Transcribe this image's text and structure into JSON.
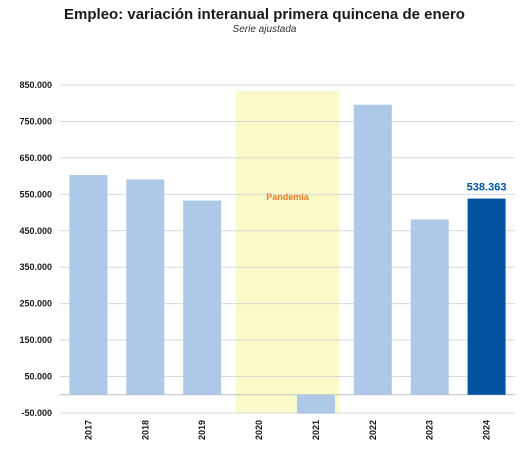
{
  "chart_data": {
    "type": "bar",
    "title": "Empleo: variación interanual primera quincena de enero",
    "subtitle": "Serie ajustada",
    "xlabel": "",
    "ylabel": "",
    "categories": [
      "2017",
      "2018",
      "2019",
      "2020",
      "2021",
      "2022",
      "2023",
      "2024"
    ],
    "values": [
      603000,
      591000,
      533000,
      null,
      -52000,
      796000,
      481000,
      538363
    ],
    "highlight": {
      "category": "2024",
      "label": "538.363",
      "color": "#00549F"
    },
    "bar_color": "#AEC8E8",
    "ylim": [
      -50000,
      850000
    ],
    "yticks": [
      -50000,
      50000,
      150000,
      250000,
      350000,
      450000,
      550000,
      650000,
      750000,
      850000
    ],
    "ytick_labels": [
      "-50.000",
      "50.000",
      "150.000",
      "250.000",
      "350.000",
      "450.000",
      "550.000",
      "650.000",
      "750.000",
      "850.000"
    ],
    "grid": "horizontal",
    "legend": "none",
    "annotation": {
      "text": "Pandemia",
      "from": "2020",
      "to": "2021",
      "fill": "#FAFAC8",
      "text_color": "#F07828"
    }
  }
}
